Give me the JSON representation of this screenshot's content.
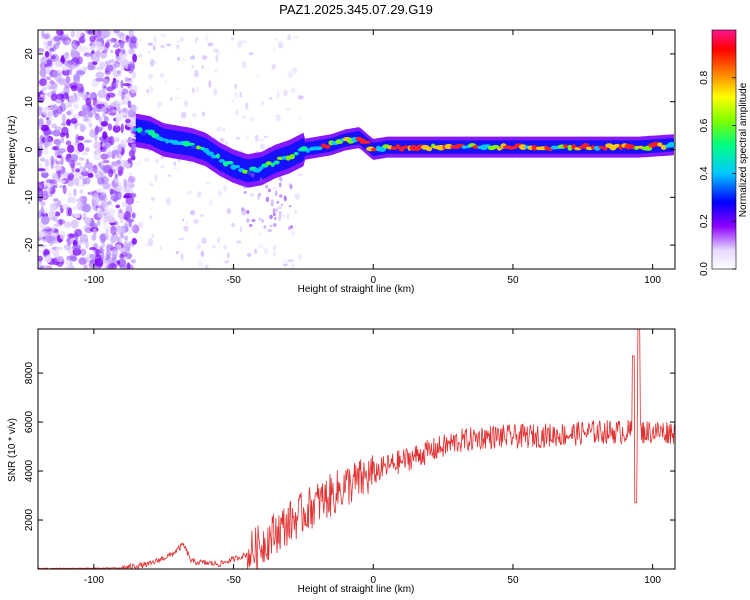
{
  "title": "PAZ1.2025.345.07.29.G19",
  "chart_data": [
    {
      "type": "heatmap",
      "name": "spectrogram",
      "xlabel": "Height of straight line (km)",
      "ylabel": "Frequency (Hz)",
      "xlim": [
        -120,
        108
      ],
      "ylim": [
        -25,
        25
      ],
      "xticks": [
        -100,
        -50,
        0,
        50,
        100
      ],
      "yticks": [
        -20,
        -10,
        0,
        10,
        20
      ],
      "colorbar": {
        "label": "Normalized spectral amplitude",
        "range": [
          0,
          1
        ],
        "ticks": [
          0.0,
          0.2,
          0.4,
          0.6,
          0.8
        ]
      },
      "ridge_center_hz": [
        [
          -85,
          4
        ],
        [
          -80,
          3.5
        ],
        [
          -75,
          2
        ],
        [
          -70,
          1.5
        ],
        [
          -65,
          1
        ],
        [
          -60,
          0
        ],
        [
          -55,
          -2
        ],
        [
          -50,
          -3.5
        ],
        [
          -45,
          -4.5
        ],
        [
          -40,
          -4
        ],
        [
          -35,
          -2.5
        ],
        [
          -30,
          -1.5
        ],
        [
          -25,
          0
        ],
        [
          -20,
          0.5
        ],
        [
          -15,
          1
        ],
        [
          -10,
          2
        ],
        [
          -5,
          2.5
        ],
        [
          0,
          0
        ],
        [
          5,
          0.5
        ],
        [
          20,
          0.5
        ],
        [
          40,
          0.5
        ],
        [
          60,
          0.5
        ],
        [
          80,
          0.5
        ],
        [
          95,
          0.5
        ],
        [
          108,
          1
        ]
      ]
    },
    {
      "type": "line",
      "name": "snr",
      "xlabel": "Height of straight line (km)",
      "ylabel": "SNR (10 * v/v)",
      "xlim": [
        -120,
        108
      ],
      "ylim": [
        0,
        9800
      ],
      "xticks": [
        -100,
        -50,
        0,
        50,
        100
      ],
      "yticks": [
        2000,
        4000,
        6000,
        8000
      ],
      "color": "#e03030",
      "envelope": [
        [
          -120,
          20
        ],
        [
          -90,
          40
        ],
        [
          -80,
          200
        ],
        [
          -72,
          600
        ],
        [
          -68,
          1000
        ],
        [
          -65,
          300
        ],
        [
          -55,
          200
        ],
        [
          -45,
          600
        ],
        [
          -40,
          1000
        ],
        [
          -35,
          1500
        ],
        [
          -30,
          1900
        ],
        [
          -25,
          2300
        ],
        [
          -20,
          2700
        ],
        [
          -15,
          3000
        ],
        [
          -10,
          3400
        ],
        [
          -5,
          3600
        ],
        [
          0,
          3900
        ],
        [
          5,
          4200
        ],
        [
          10,
          4400
        ],
        [
          20,
          4800
        ],
        [
          30,
          5200
        ],
        [
          40,
          5400
        ],
        [
          50,
          5400
        ],
        [
          60,
          5450
        ],
        [
          70,
          5500
        ],
        [
          80,
          5600
        ],
        [
          90,
          5600
        ],
        [
          100,
          5600
        ],
        [
          108,
          5600
        ]
      ],
      "spikes": [
        {
          "x": 93,
          "y": 8700
        },
        {
          "x": 94,
          "y": 2700
        },
        {
          "x": 95,
          "y": 9800
        }
      ]
    }
  ]
}
